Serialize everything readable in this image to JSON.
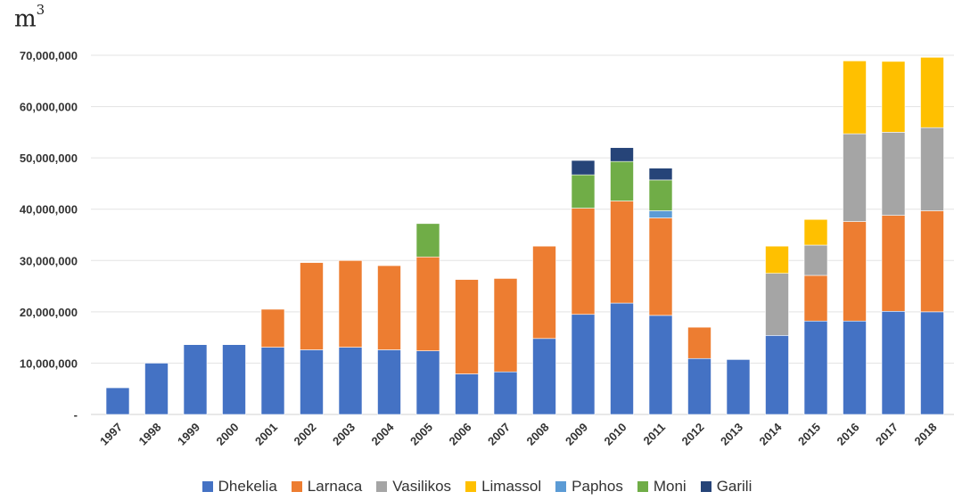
{
  "unit_label": "m",
  "unit_exponent": "3",
  "chart_data": {
    "type": "bar",
    "stacked": true,
    "title": "",
    "xlabel": "",
    "ylabel": "m3",
    "ylim": [
      0,
      70000000
    ],
    "y_ticks": [
      0,
      10000000,
      20000000,
      30000000,
      40000000,
      50000000,
      60000000,
      70000000
    ],
    "y_tick_labels": [
      "-",
      "10,000,000",
      "20,000,000",
      "30,000,000",
      "40,000,000",
      "50,000,000",
      "60,000,000",
      "70,000,000"
    ],
    "grid": true,
    "legend_position": "bottom",
    "categories": [
      "1997",
      "1998",
      "1999",
      "2000",
      "2001",
      "2002",
      "2003",
      "2004",
      "2005",
      "2006",
      "2007",
      "2008",
      "2009",
      "2010",
      "2011",
      "2012",
      "2013",
      "2014",
      "2015",
      "2016",
      "2017",
      "2018"
    ],
    "series": [
      {
        "name": "Dhekelia",
        "color": "#4472C4",
        "values": [
          5200000,
          10000000,
          13600000,
          13600000,
          13100000,
          12600000,
          13100000,
          12600000,
          12400000,
          7900000,
          8300000,
          14800000,
          19500000,
          21700000,
          19300000,
          10900000,
          10700000,
          15400000,
          18200000,
          18200000,
          20100000,
          20000000
        ]
      },
      {
        "name": "Larnaca",
        "color": "#ED7D31",
        "values": [
          0,
          0,
          0,
          0,
          7400000,
          17000000,
          16900000,
          16400000,
          18300000,
          18400000,
          18200000,
          18000000,
          20700000,
          19900000,
          19000000,
          6100000,
          0,
          0,
          8900000,
          19400000,
          18700000,
          19700000
        ]
      },
      {
        "name": "Vasilikos",
        "color": "#A5A5A5",
        "values": [
          0,
          0,
          0,
          0,
          0,
          0,
          0,
          0,
          0,
          0,
          0,
          0,
          0,
          0,
          0,
          0,
          0,
          12100000,
          5900000,
          17100000,
          16200000,
          16200000
        ]
      },
      {
        "name": "Limassol",
        "color": "#FFC000",
        "values": [
          0,
          0,
          0,
          0,
          0,
          0,
          0,
          0,
          0,
          0,
          0,
          0,
          0,
          0,
          0,
          0,
          0,
          5300000,
          5000000,
          14200000,
          13800000,
          13700000
        ]
      },
      {
        "name": "Paphos",
        "color": "#5B9BD5",
        "values": [
          0,
          0,
          0,
          0,
          0,
          0,
          0,
          0,
          0,
          0,
          0,
          0,
          0,
          0,
          1400000,
          0,
          0,
          0,
          0,
          0,
          0,
          0
        ]
      },
      {
        "name": "Moni",
        "color": "#70AD47",
        "values": [
          0,
          0,
          0,
          0,
          0,
          0,
          0,
          0,
          6500000,
          0,
          0,
          0,
          6500000,
          7700000,
          6000000,
          0,
          0,
          0,
          0,
          0,
          0,
          0
        ]
      },
      {
        "name": "Garili",
        "color": "#264478",
        "values": [
          0,
          0,
          0,
          0,
          0,
          0,
          0,
          0,
          0,
          0,
          0,
          0,
          2800000,
          2700000,
          2300000,
          0,
          0,
          0,
          0,
          0,
          0,
          0
        ]
      }
    ]
  }
}
